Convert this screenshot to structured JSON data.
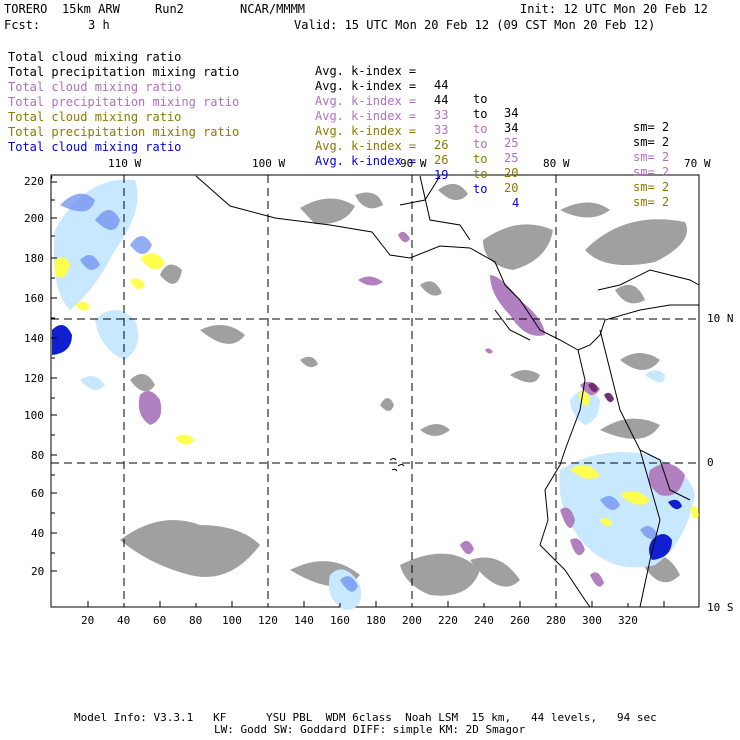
{
  "header": {
    "model": "TORERO",
    "resolution": "15km ARW",
    "run": "Run2",
    "org": "NCAR/MMMM",
    "init": "Init: 12 UTC Mon 20 Feb 12",
    "fcst_label": "Fcst:",
    "fcst_value": "3 h",
    "valid": "Valid: 15 UTC Mon 20 Feb 12 (09 CST Mon 20 Feb 12)"
  },
  "legend": [
    {
      "field": "Total cloud mixing ratio",
      "avg": "Avg. k-index =",
      "from": "44",
      "to_word": "to",
      "to": "34",
      "sm": "sm= 2",
      "color": "#000000"
    },
    {
      "field": "Total precipitation mixing ratio",
      "avg": "Avg. k-index =",
      "from": "44",
      "to_word": "to",
      "to": "34",
      "sm": "sm= 2",
      "color": "#000000"
    },
    {
      "field": "Total cloud mixing ratio",
      "avg": "Avg. k-index =",
      "from": "33",
      "to_word": "to",
      "to": "25",
      "sm": "sm= 2",
      "color": "#b070c0"
    },
    {
      "field": "Total precipitation mixing ratio",
      "avg": "Avg. k-index =",
      "from": "33",
      "to_word": "to",
      "to": "25",
      "sm": "sm= 2",
      "color": "#b070c0"
    },
    {
      "field": "Total cloud mixing ratio",
      "avg": "Avg. k-index =",
      "from": "26",
      "to_word": "to",
      "to": "20",
      "sm": "sm= 2",
      "color": "#8a7a00"
    },
    {
      "field": "Total precipitation mixing ratio",
      "avg": "Avg. k-index =",
      "from": "26",
      "to_word": "to",
      "to": "20",
      "sm": "sm= 2",
      "color": "#8a7a00"
    },
    {
      "field": "Total cloud mixing ratio",
      "avg": "Avg. k-index =",
      "from": "19",
      "to_word": "to",
      "to": "4",
      "sm": "",
      "color": "#0000dd"
    }
  ],
  "axes": {
    "lon_labels": [
      "110 W",
      "100 W",
      "90 W",
      "80 W",
      "70 W"
    ],
    "lat_labels": [
      "10 N",
      "0",
      "10 S"
    ],
    "x_ticks": [
      "20",
      "40",
      "60",
      "80",
      "100",
      "120",
      "140",
      "160",
      "180",
      "200",
      "220",
      "240",
      "260",
      "280",
      "300",
      "320"
    ],
    "y_ticks": [
      "220",
      "200",
      "180",
      "160",
      "140",
      "120",
      "100",
      "80",
      "60",
      "40",
      "20"
    ]
  },
  "colors": {
    "gray_cloud": "#a0a0a0",
    "purple": "#b080c0",
    "dark_purple": "#703070",
    "yellow": "#ffff50",
    "light_blue": "#c8e8ff",
    "mid_blue": "#7090f0",
    "deep_blue": "#1020d0"
  },
  "footer": {
    "line1": "Model Info: V3.3.1   KF      YSU PBL  WDM 6class  Noah LSM  15 km,   44 levels,   94 sec",
    "line2": "LW: Godd SW: Goddard DIFF: simple KM: 2D Smagor"
  }
}
